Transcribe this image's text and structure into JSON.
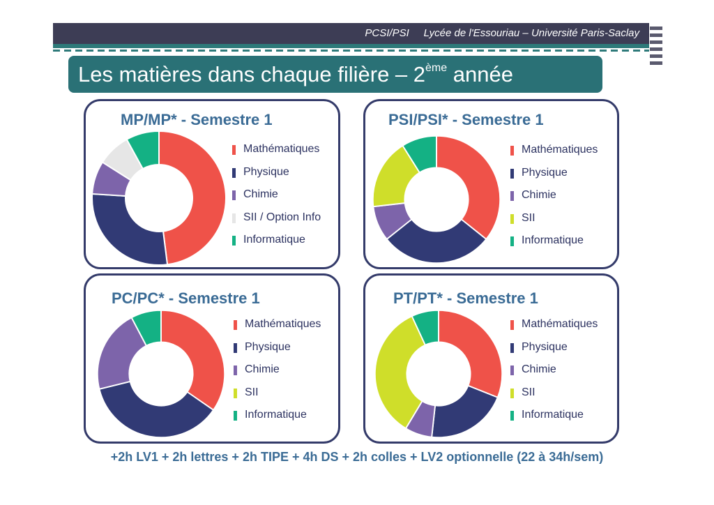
{
  "header": {
    "course": "PCSI/PSI",
    "school": "Lycée de l'Essouriau – Université Paris-Saclay"
  },
  "title": {
    "main": "Les matières dans chaque filière – 2",
    "sup": "ème",
    "suffix": " année"
  },
  "colors": {
    "Mathématiques": "#ef5249",
    "Physique": "#313a75",
    "Chimie": "#7d64aa",
    "SII / Option Info": "#e6e6e6",
    "SII": "#cfde2a",
    "Informatique": "#14b184"
  },
  "chart_data": [
    {
      "type": "pie",
      "title": "MP/MP* - Semestre 1",
      "categories": [
        "Mathématiques",
        "Physique",
        "Chimie",
        "SII / Option Info",
        "Informatique"
      ],
      "values": [
        12,
        7,
        2,
        2,
        2
      ]
    },
    {
      "type": "pie",
      "title": "PSI/PSI* - Semestre 1",
      "categories": [
        "Mathématiques",
        "Physique",
        "Chimie",
        "SII",
        "Informatique"
      ],
      "values": [
        10,
        8,
        2.5,
        5,
        2.5
      ]
    },
    {
      "type": "pie",
      "title": "PC/PC* - Semestre 1",
      "categories": [
        "Mathématiques",
        "Physique",
        "Chimie",
        "SII",
        "Informatique"
      ],
      "values": [
        9,
        9.5,
        5.5,
        0,
        2
      ]
    },
    {
      "type": "pie",
      "title": "PT/PT* - Semestre 1",
      "categories": [
        "Mathématiques",
        "Physique",
        "Chimie",
        "SII",
        "Informatique"
      ],
      "values": [
        9,
        6,
        2,
        10,
        2
      ]
    }
  ],
  "footer": "+2h LV1 + 2h lettres + 2h TIPE + 4h DS + 2h colles + LV2 optionnelle (22 à 34h/sem)"
}
